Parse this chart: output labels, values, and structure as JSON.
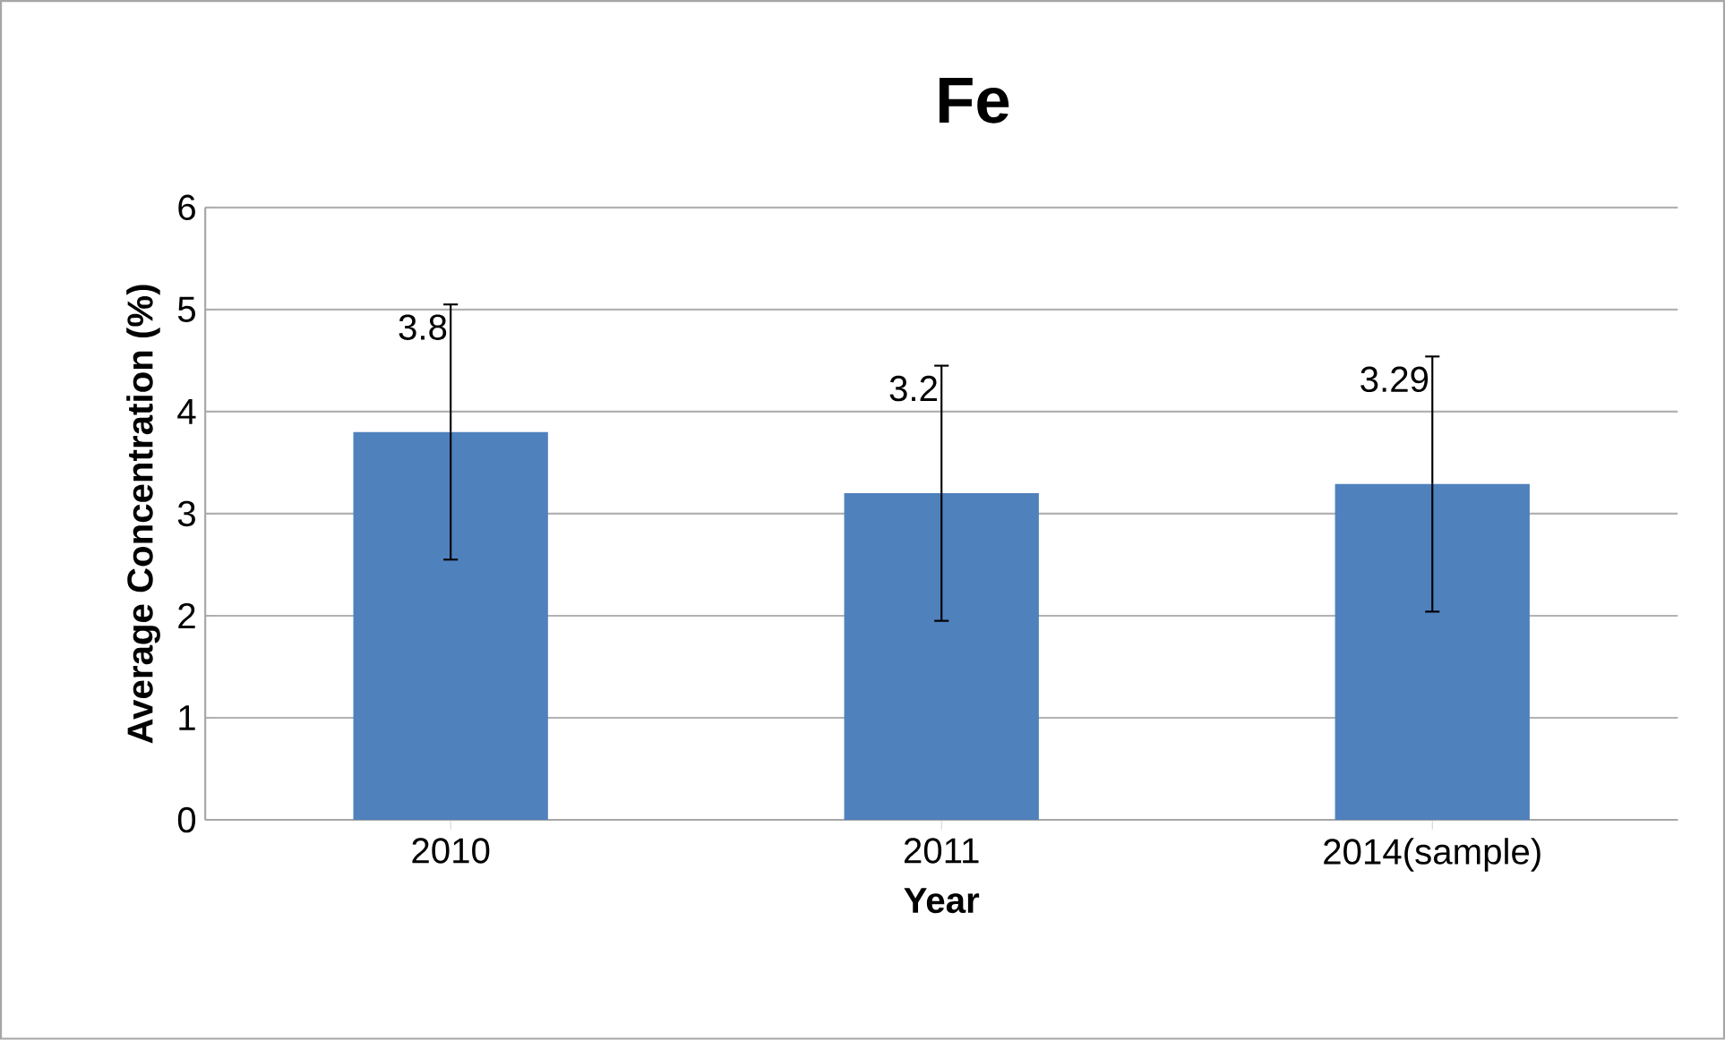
{
  "chart_data": {
    "type": "bar",
    "title": "Fe",
    "xlabel": "Year",
    "ylabel": "Average Concentration (%)",
    "categories": [
      "2010",
      "2011",
      "2014(sample)"
    ],
    "values": [
      3.8,
      3.2,
      3.29
    ],
    "errors": [
      1.25,
      1.25,
      1.25
    ],
    "color": "#4f81bd",
    "ylim": [
      0,
      6
    ],
    "yticks": [
      0,
      1,
      2,
      3,
      4,
      5,
      6
    ],
    "grid": "y",
    "data_labels": true
  }
}
